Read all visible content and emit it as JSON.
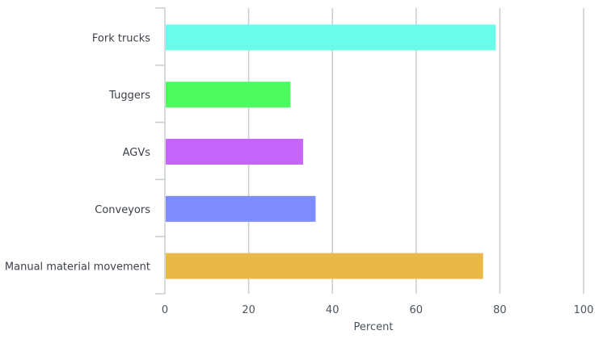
{
  "chart_data": {
    "type": "bar",
    "orientation": "horizontal",
    "categories": [
      "Fork trucks",
      "Tuggers",
      "AGVs",
      "Conveyors",
      "Manual material movement"
    ],
    "values": [
      79,
      30,
      33,
      36,
      76
    ],
    "colors": [
      "#6afbe9",
      "#4dfb5e",
      "#c764fb",
      "#7f8cfb",
      "#e9b846"
    ],
    "xlabel": "Percent",
    "ylabel": "",
    "title": "",
    "xlim": [
      0,
      100
    ],
    "xticks": [
      0,
      20,
      40,
      60,
      80,
      100
    ],
    "grid": true,
    "legend": "none"
  }
}
